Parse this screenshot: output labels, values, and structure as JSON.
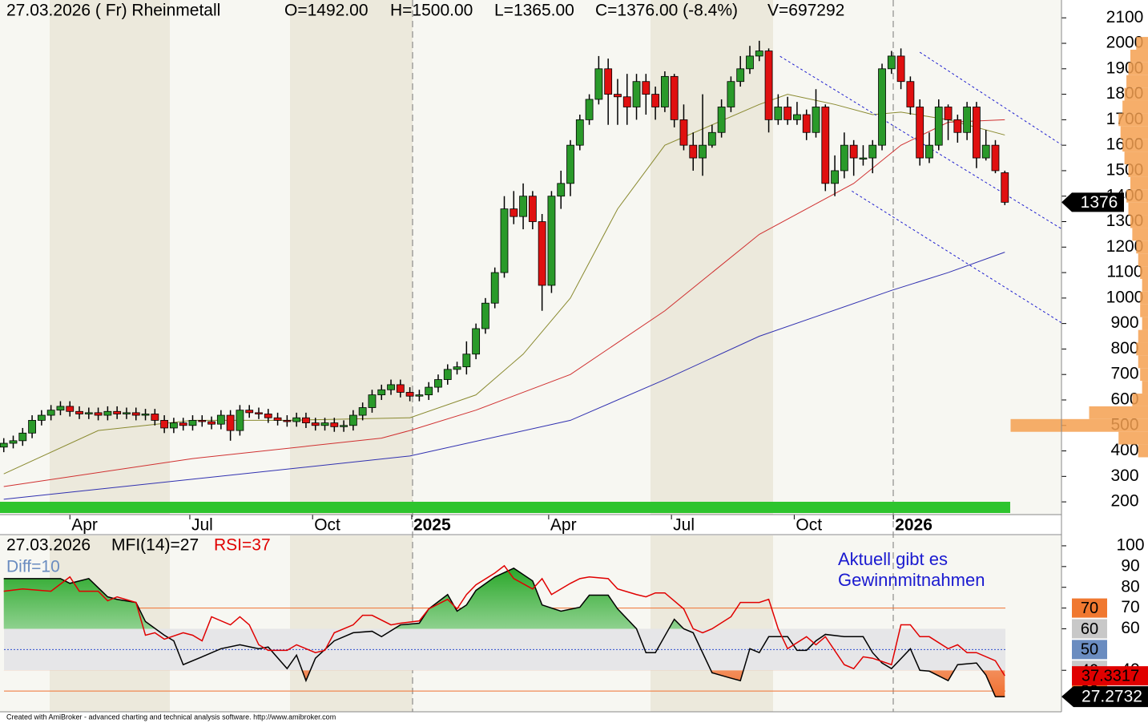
{
  "chart_data": [
    {
      "type": "candlestick",
      "title": "27.03.2026 ( Fr) Rheinmetall",
      "info": [
        "O=1492.00",
        "H=1500.00",
        "L=1365.00",
        "C=1376.00 (-8.4%)",
        "V=697292"
      ],
      "xlim": [
        -0.4,
        112
      ],
      "xticks": [
        {
          "value": 7,
          "label": "Apr"
        },
        {
          "value": 19.7,
          "label": "Jul"
        },
        {
          "value": 32.7,
          "label": "Oct"
        },
        {
          "value": 43.2,
          "label": "2025"
        },
        {
          "value": 57.7,
          "label": "Apr"
        },
        {
          "value": 70.7,
          "label": "Jul"
        },
        {
          "value": 83.7,
          "label": "Oct"
        },
        {
          "value": 94.2,
          "label": "2026"
        }
      ],
      "ylim": [
        150,
        2170
      ],
      "yticks": [
        200,
        300,
        400,
        500,
        600,
        700,
        800,
        900,
        1000,
        1100,
        1200,
        1300,
        1400,
        1500,
        1600,
        1700,
        1800,
        1900,
        2000,
        2100
      ],
      "up_color": "#2a9a2a",
      "down_color": "#e01010",
      "open": [
        415,
        430,
        440,
        470,
        520,
        540,
        560,
        575,
        555,
        545,
        550,
        540,
        555,
        545,
        550,
        540,
        545,
        520,
        490,
        510,
        500,
        520,
        515,
        505,
        540,
        480,
        560,
        550,
        545,
        530,
        520,
        515,
        530,
        510,
        500,
        510,
        495,
        500,
        540,
        570,
        620,
        640,
        660,
        630,
        615,
        620,
        650,
        680,
        720,
        730,
        780,
        880,
        980,
        1100,
        1350,
        1320,
        1400,
        1300,
        1050,
        1400,
        1450,
        1600,
        1700,
        1780,
        1900,
        1800,
        1790,
        1750,
        1850,
        1800,
        1750,
        1870,
        1700,
        1600,
        1550,
        1600,
        1650,
        1750,
        1850,
        1900,
        1950,
        1970,
        1700,
        1750,
        1700,
        1720,
        1650,
        1750,
        1450,
        1500,
        1600,
        1550,
        1550,
        1600,
        1900,
        1950,
        1850,
        1750,
        1550,
        1600,
        1750,
        1700,
        1650,
        1750,
        1550,
        1600,
        1492
      ],
      "high": [
        450,
        460,
        490,
        540,
        560,
        580,
        595,
        595,
        575,
        570,
        570,
        575,
        575,
        570,
        570,
        565,
        565,
        540,
        530,
        530,
        540,
        540,
        535,
        560,
        560,
        580,
        580,
        570,
        565,
        550,
        540,
        550,
        550,
        530,
        530,
        530,
        520,
        560,
        590,
        640,
        660,
        680,
        680,
        650,
        640,
        670,
        700,
        740,
        750,
        830,
        900,
        1000,
        1120,
        1400,
        1420,
        1450,
        1420,
        1330,
        1420,
        1500,
        1620,
        1720,
        1800,
        1950,
        1940,
        1860,
        1880,
        1880,
        1880,
        1830,
        1890,
        1880,
        1760,
        1650,
        1800,
        1680,
        1780,
        1870,
        1950,
        1990,
        2010,
        1980,
        1800,
        1790,
        1770,
        1740,
        1820,
        1760,
        1560,
        1650,
        1620,
        1600,
        1620,
        1920,
        1970,
        1980,
        1870,
        1780,
        1650,
        1780,
        1760,
        1720,
        1770,
        1770,
        1660,
        1620,
        1500
      ],
      "low": [
        395,
        410,
        420,
        450,
        500,
        520,
        540,
        535,
        525,
        525,
        520,
        520,
        525,
        525,
        520,
        520,
        500,
        470,
        470,
        480,
        480,
        495,
        485,
        485,
        440,
        460,
        530,
        525,
        510,
        500,
        495,
        495,
        490,
        480,
        480,
        475,
        475,
        480,
        520,
        550,
        600,
        620,
        610,
        595,
        595,
        600,
        630,
        660,
        700,
        700,
        760,
        860,
        960,
        1080,
        1290,
        1270,
        1270,
        950,
        1020,
        1350,
        1400,
        1580,
        1680,
        1760,
        1680,
        1680,
        1680,
        1700,
        1720,
        1700,
        1730,
        1670,
        1580,
        1500,
        1480,
        1590,
        1630,
        1730,
        1830,
        1880,
        1930,
        1650,
        1680,
        1680,
        1680,
        1620,
        1630,
        1420,
        1400,
        1470,
        1480,
        1520,
        1490,
        1580,
        1880,
        1820,
        1720,
        1520,
        1530,
        1580,
        1620,
        1610,
        1620,
        1510,
        1540,
        1490,
        1365
      ],
      "close": [
        430,
        440,
        470,
        520,
        540,
        560,
        575,
        555,
        545,
        550,
        540,
        555,
        545,
        550,
        540,
        545,
        520,
        490,
        510,
        500,
        520,
        515,
        505,
        540,
        480,
        560,
        550,
        545,
        530,
        520,
        515,
        530,
        510,
        500,
        510,
        495,
        500,
        540,
        570,
        620,
        640,
        660,
        630,
        615,
        620,
        650,
        680,
        720,
        730,
        780,
        880,
        980,
        1100,
        1350,
        1320,
        1400,
        1300,
        1050,
        1400,
        1450,
        1600,
        1700,
        1780,
        1900,
        1800,
        1790,
        1750,
        1850,
        1800,
        1750,
        1870,
        1700,
        1600,
        1550,
        1600,
        1650,
        1750,
        1850,
        1900,
        1950,
        1970,
        1700,
        1750,
        1700,
        1720,
        1650,
        1750,
        1450,
        1500,
        1600,
        1550,
        1550,
        1600,
        1900,
        1950,
        1850,
        1750,
        1550,
        1600,
        1750,
        1700,
        1650,
        1750,
        1550,
        1600,
        1500,
        1376
      ],
      "lines": [
        {
          "color": "#8a8a30",
          "x": [
            0,
            10,
            20,
            30,
            43,
            50,
            55,
            60,
            65,
            70,
            75,
            80,
            83,
            88,
            92,
            95,
            100,
            106
          ],
          "values": [
            310,
            480,
            520,
            520,
            530,
            620,
            780,
            1000,
            1350,
            1600,
            1680,
            1760,
            1800,
            1760,
            1720,
            1730,
            1700,
            1640
          ]
        },
        {
          "color": "#d03030",
          "x": [
            0,
            20,
            40,
            43,
            50,
            60,
            70,
            80,
            90,
            95,
            100,
            106
          ],
          "values": [
            260,
            370,
            450,
            480,
            560,
            700,
            950,
            1250,
            1450,
            1600,
            1690,
            1700
          ]
        },
        {
          "color": "#3030b0",
          "x": [
            0,
            43,
            60,
            70,
            80,
            94,
            100,
            106
          ],
          "values": [
            210,
            380,
            520,
            680,
            850,
            1030,
            1100,
            1180
          ]
        }
      ],
      "trendlines": [
        {
          "color": "#2020d0",
          "x": [
            82.2,
            112
          ],
          "values": [
            1949,
            1272
          ]
        },
        {
          "color": "#2020d0",
          "x": [
            97,
            112
          ],
          "values": [
            1965,
            1602
          ]
        },
        {
          "color": "#2020d0",
          "x": [
            89.8,
            112
          ],
          "values": [
            1420,
            903
          ]
        }
      ],
      "volume_profile": {
        "color": "#f5a050",
        "levels": [
          400,
          450,
          500,
          550,
          600,
          650,
          700,
          750,
          800,
          850,
          900,
          950,
          1000,
          1050,
          1100,
          1150,
          1200,
          1250,
          1300,
          1350,
          1400,
          1450,
          1500,
          1550,
          1600,
          1650,
          1700,
          1750,
          1800,
          1850,
          1900,
          1950,
          2000
        ],
        "values": [
          5,
          15,
          70,
          30,
          8,
          3,
          4,
          5,
          6,
          5,
          3,
          4,
          4,
          3,
          4,
          5,
          6,
          8,
          9,
          10,
          11,
          9,
          10,
          12,
          13,
          14,
          15,
          13,
          12,
          11,
          10,
          9,
          6
        ]
      },
      "price_marker": {
        "value": 1376,
        "label": "1376"
      }
    },
    {
      "type": "oscillator",
      "title": "27.03.2026",
      "subtitle": "Diff=10",
      "annotation": [
        "Aktuell gibt es",
        "Gewinnmitnahmen"
      ],
      "xlim": [
        -0.4,
        112
      ],
      "ylim": [
        20,
        105
      ],
      "yticks": [
        40,
        60,
        70,
        80,
        90,
        100
      ],
      "zones": [
        {
          "value": 70,
          "color": "#f07830"
        },
        {
          "value": 60,
          "color": "#c8c8c8"
        },
        {
          "value": 50,
          "color": "#6a8cc0"
        },
        {
          "value": 40,
          "color": "#c8c8c8"
        },
        {
          "value": 30,
          "color": "#f07830"
        }
      ],
      "series": [
        {
          "name": "MFI(14)=27",
          "color": "#000000",
          "x": [
            0,
            6,
            7,
            9,
            11,
            12,
            14,
            15,
            17,
            18,
            19,
            21,
            23,
            25,
            27,
            28,
            30,
            31,
            32,
            33,
            35,
            37,
            39,
            40,
            42,
            44,
            45,
            47,
            48,
            49,
            50,
            52,
            54,
            56,
            57,
            59,
            61,
            62,
            64,
            65,
            67,
            68,
            69,
            71,
            72,
            73,
            75,
            77,
            78,
            79,
            80,
            81,
            83,
            84,
            85,
            86,
            87,
            89,
            91,
            92,
            93,
            94,
            96,
            97,
            98,
            100,
            101,
            103,
            104,
            105,
            106
          ],
          "values": [
            84.2,
            84.2,
            81.9,
            84.2,
            75.4,
            74.2,
            72.7,
            63.5,
            56.9,
            54.2,
            42.7,
            46.5,
            50.4,
            52.3,
            50.4,
            51.2,
            40.8,
            47.3,
            35,
            45.8,
            54.2,
            58.1,
            58.8,
            56.2,
            61.9,
            62.7,
            69.6,
            76.5,
            68.5,
            71.5,
            78.5,
            85,
            89.2,
            83.1,
            71.5,
            68.5,
            70.4,
            76.2,
            76.2,
            69.6,
            60,
            48.5,
            48.5,
            64.6,
            60,
            58.1,
            38.8,
            36.2,
            35,
            50.4,
            48.5,
            56.2,
            56.2,
            49.6,
            49.6,
            54.2,
            57.3,
            56.2,
            56.2,
            48.5,
            43.5,
            40.8,
            50.4,
            40,
            39.6,
            35,
            42.7,
            43.5,
            37.7,
            27.3,
            27.2732
          ]
        },
        {
          "name": "RSI=37",
          "color": "#e00000",
          "x": [
            0,
            2,
            5,
            7,
            8,
            10,
            11,
            12,
            14,
            15,
            16,
            17,
            19,
            20,
            21,
            22,
            24,
            25,
            26,
            27,
            28,
            30,
            31,
            33,
            34,
            35,
            37,
            38,
            39,
            41,
            42,
            44,
            45,
            47,
            48,
            49,
            50,
            52,
            53,
            54,
            56,
            57,
            58,
            60,
            61,
            62,
            64,
            65,
            67,
            68,
            69,
            70,
            72,
            73,
            74,
            75,
            77,
            78,
            80,
            81,
            82,
            83,
            85,
            86,
            87,
            89,
            90,
            91,
            92,
            94,
            95,
            96,
            97,
            98,
            100,
            101,
            102,
            103,
            105,
            106
          ],
          "values": [
            78.1,
            79.2,
            78.1,
            85,
            78.1,
            78.1,
            73.5,
            75.4,
            72.7,
            56.9,
            58.1,
            55,
            58.1,
            56.9,
            54.2,
            65.8,
            61.9,
            65.8,
            61.9,
            52.3,
            49.6,
            49.6,
            52.3,
            48.5,
            49.6,
            58.1,
            61.9,
            66.5,
            66.5,
            61.9,
            62.7,
            63.8,
            69.6,
            74.2,
            69.6,
            76.5,
            81.2,
            86.9,
            90.4,
            84.2,
            79.2,
            84.2,
            76.5,
            81.9,
            84.2,
            85,
            84.2,
            79.2,
            76.5,
            75.4,
            77.3,
            77.3,
            69.6,
            60,
            58.1,
            60,
            65.8,
            72.7,
            72.7,
            74.2,
            60,
            50.4,
            56.2,
            52.3,
            56.2,
            42.7,
            40.8,
            46.5,
            45.8,
            42.7,
            61.9,
            61.9,
            56.2,
            56.2,
            50.4,
            52.3,
            48.5,
            48.5,
            44.6,
            37.3317
          ]
        }
      ],
      "levels": {
        "upper": 70,
        "lower": 30,
        "band": [
          40,
          60
        ],
        "mid": 50
      },
      "footer": "Created with AmiBroker - advanced charting and technical analysis software. http://www.amibroker.com"
    }
  ]
}
